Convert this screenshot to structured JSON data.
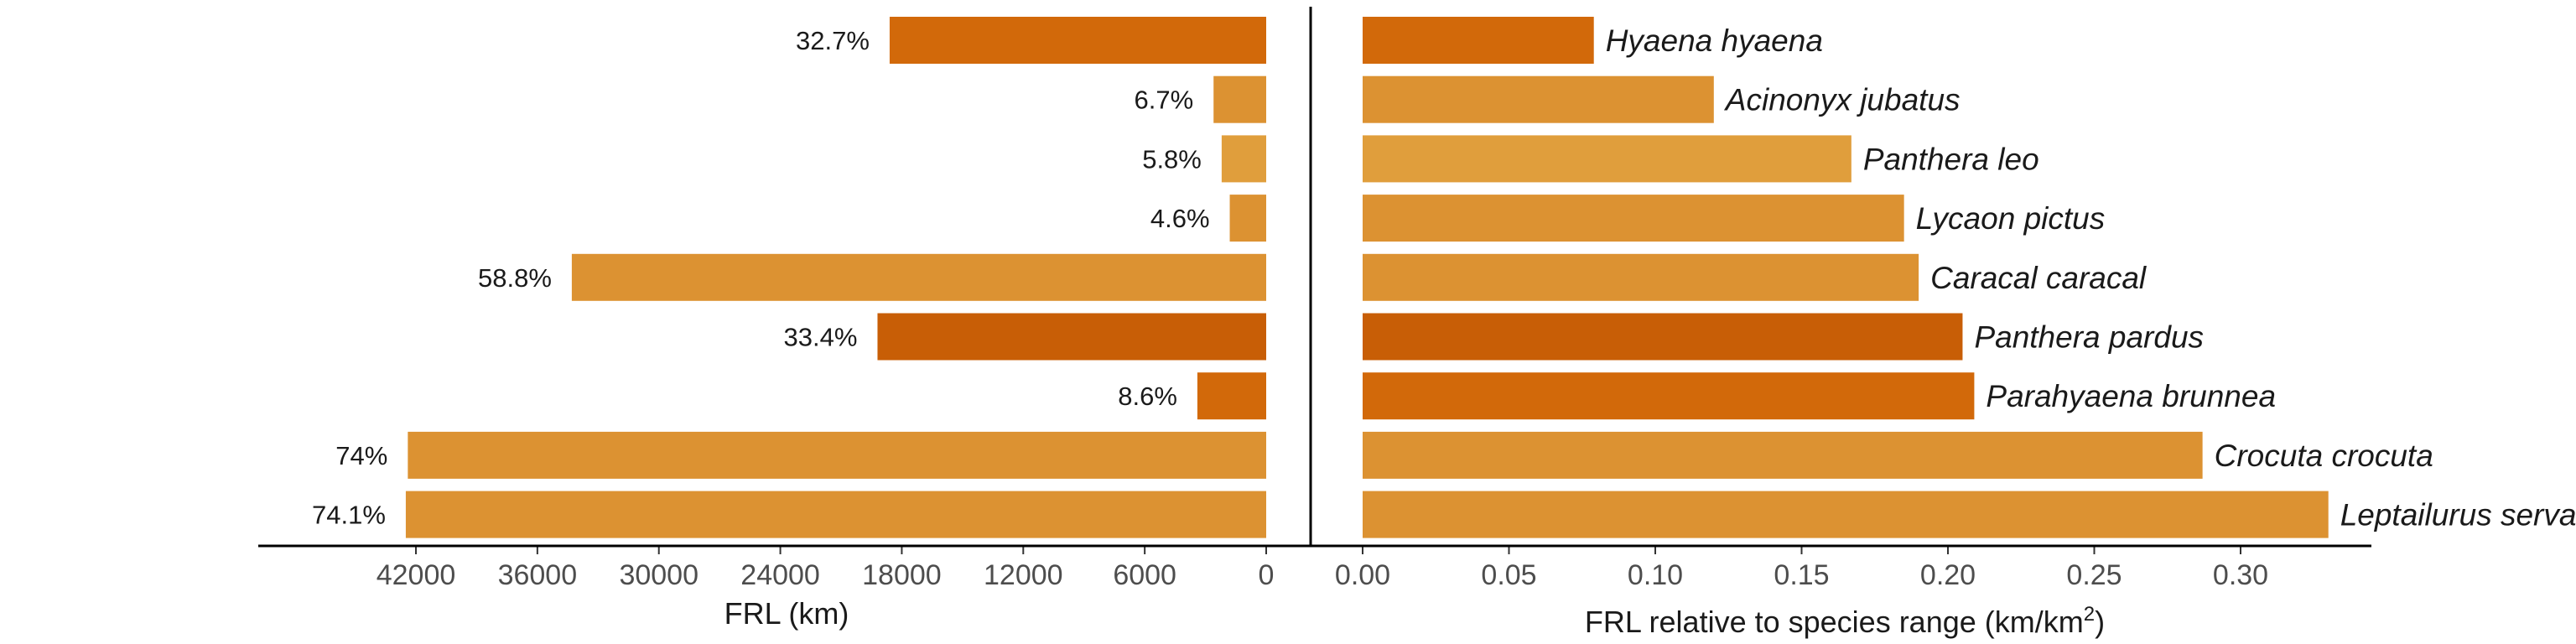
{
  "chart_data": [
    {
      "type": "bar",
      "orientation": "horizontal",
      "reversed_x": true,
      "categories": [
        "Hyaena hyaena",
        "Acinonyx jubatus",
        "Panthera leo",
        "Lycaon pictus",
        "Caracal caracal",
        "Panthera pardus",
        "Parahyaena brunnea",
        "Crocuta crocuta",
        "Leptailurus serval"
      ],
      "values": [
        18600,
        2600,
        2200,
        1800,
        34300,
        19200,
        3400,
        42400,
        42500
      ],
      "data_labels": [
        "32.7%",
        "6.7%",
        "5.8%",
        "4.6%",
        "58.8%",
        "33.4%",
        "8.6%",
        "74%",
        "74.1%"
      ],
      "colors": [
        "#d2690a",
        "#dc9232",
        "#e09e3c",
        "#dc9232",
        "#dc9232",
        "#c85e06",
        "#d2690a",
        "#dc9232",
        "#dc9232"
      ],
      "xlabel": "FRL (km)",
      "xlim": [
        0,
        48000
      ],
      "xticks": [
        "42000",
        "36000",
        "30000",
        "24000",
        "18000",
        "12000",
        "6000",
        "0"
      ],
      "xtick_values": [
        42000,
        36000,
        30000,
        24000,
        18000,
        12000,
        6000,
        0
      ],
      "grid": false
    },
    {
      "type": "bar",
      "orientation": "horizontal",
      "categories": [
        "Hyaena hyaena",
        "Acinonyx jubatus",
        "Panthera leo",
        "Lycaon pictus",
        "Caracal caracal",
        "Panthera pardus",
        "Parahyaena brunnea",
        "Crocuta crocuta",
        "Leptailurus serval"
      ],
      "values": [
        0.079,
        0.12,
        0.167,
        0.185,
        0.19,
        0.205,
        0.209,
        0.287,
        0.33
      ],
      "colors": [
        "#d2690a",
        "#dc9232",
        "#e09e3c",
        "#dc9232",
        "#dc9232",
        "#c85e06",
        "#d2690a",
        "#dc9232",
        "#dc9232"
      ],
      "xlabel": "FRL relative to species range (km/km",
      "xlabel_superscript": "2",
      "xlabel_suffix": ")",
      "xlim": [
        0,
        0.35
      ],
      "xticks": [
        "0.00",
        "0.05",
        "0.10",
        "0.15",
        "0.20",
        "0.25",
        "0.30"
      ],
      "xtick_values": [
        0.0,
        0.05,
        0.1,
        0.15,
        0.2,
        0.25,
        0.3
      ],
      "grid": false
    }
  ]
}
